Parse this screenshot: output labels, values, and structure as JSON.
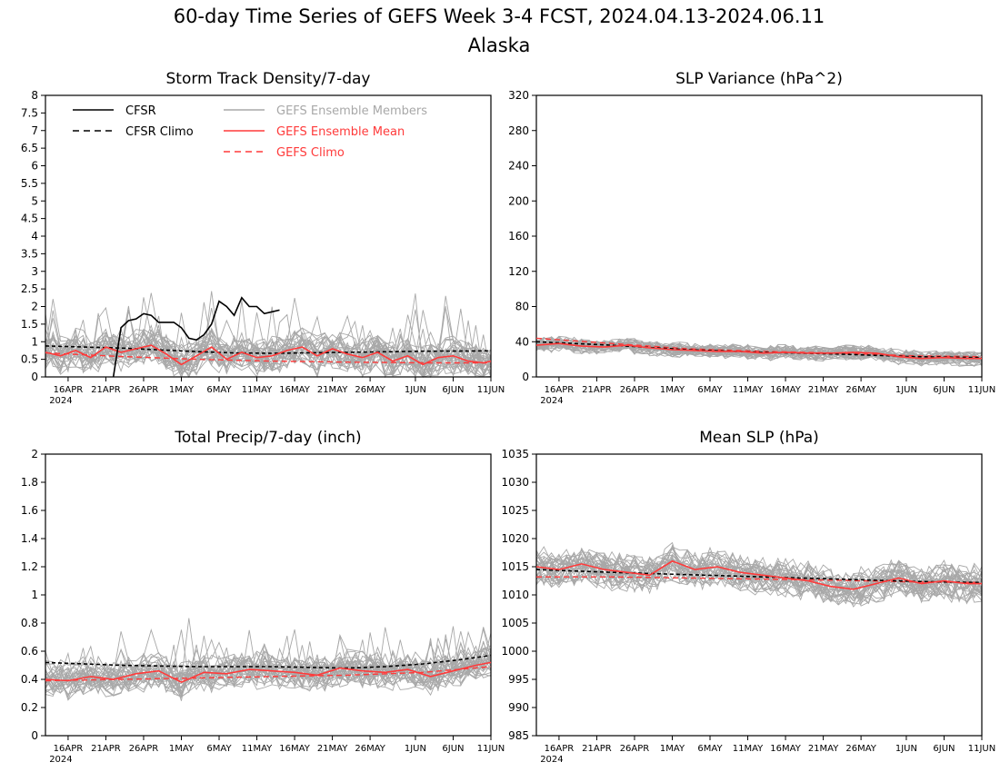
{
  "header": {
    "title_line1": "60-day Time Series of GEFS Week 3-4 FCST, 2024.04.13-2024.06.11",
    "title_line2": "Alaska"
  },
  "colors": {
    "cfsr": "#000000",
    "members": "#a8a8a8",
    "ens_mean": "#ff3a3a",
    "axes": "#000000"
  },
  "x_axis": {
    "ticks": [
      {
        "day": 3,
        "label": "16APR"
      },
      {
        "day": 8,
        "label": "21APR"
      },
      {
        "day": 13,
        "label": "26APR"
      },
      {
        "day": 18,
        "label": "1MAY"
      },
      {
        "day": 23,
        "label": "6MAY"
      },
      {
        "day": 28,
        "label": "11MAY"
      },
      {
        "day": 33,
        "label": "16MAY"
      },
      {
        "day": 38,
        "label": "21MAY"
      },
      {
        "day": 43,
        "label": "26MAY"
      },
      {
        "day": 49,
        "label": "1JUN"
      },
      {
        "day": 54,
        "label": "6JUN"
      },
      {
        "day": 59,
        "label": "11JUN"
      }
    ],
    "year_label": "2024"
  },
  "legend": {
    "cfsr": "CFSR",
    "cfsr_climo": "CFSR Climo",
    "members": "GEFS Ensemble Members",
    "ens_mean": "GEFS Ensemble Mean",
    "gefs_climo": "GEFS Climo"
  },
  "chart_data": [
    {
      "type": "line",
      "title": "Storm Track Density/7-day",
      "x_range": [
        0,
        59
      ],
      "ylim": [
        0,
        8
      ],
      "y_ticks": [
        "0",
        "0.5",
        "1",
        "1.5",
        "2",
        "2.5",
        "3",
        "3.5",
        "4",
        "4.5",
        "5",
        "5.5",
        "6",
        "6.5",
        "7",
        "7.5",
        "8"
      ],
      "member_count": 30,
      "series": [
        {
          "name": "CFSR",
          "x": [
            9,
            10,
            11,
            12,
            13,
            14,
            15,
            16,
            17,
            18,
            19,
            20,
            21,
            22,
            23,
            24,
            25,
            26,
            27,
            28,
            29,
            30,
            31
          ],
          "values": [
            0,
            1.4,
            1.6,
            1.65,
            1.8,
            1.75,
            1.55,
            1.55,
            1.55,
            1.4,
            1.1,
            1.05,
            1.2,
            1.5,
            2.15,
            2.0,
            1.75,
            2.25,
            2.0,
            2.0,
            1.8,
            1.85,
            1.9
          ]
        },
        {
          "name": "CFSR Climo",
          "x": [
            0,
            10,
            20,
            25,
            30,
            40,
            50,
            59
          ],
          "values": [
            0.88,
            0.82,
            0.72,
            0.68,
            0.67,
            0.7,
            0.73,
            0.74
          ]
        },
        {
          "name": "GEFS Ensemble Mean",
          "x": [
            0,
            2,
            4,
            6,
            8,
            10,
            12,
            14,
            16,
            18,
            20,
            22,
            24,
            26,
            28,
            30,
            32,
            34,
            36,
            38,
            40,
            42,
            44,
            46,
            48,
            50,
            52,
            54,
            56,
            58,
            59
          ],
          "values": [
            0.7,
            0.6,
            0.75,
            0.55,
            0.85,
            0.7,
            0.8,
            0.9,
            0.65,
            0.35,
            0.6,
            0.85,
            0.5,
            0.7,
            0.55,
            0.6,
            0.75,
            0.85,
            0.6,
            0.8,
            0.65,
            0.55,
            0.7,
            0.45,
            0.6,
            0.35,
            0.55,
            0.6,
            0.45,
            0.4,
            0.45
          ]
        },
        {
          "name": "GEFS Climo",
          "x": [
            0,
            10,
            20,
            30,
            40,
            50,
            59
          ],
          "values": [
            0.68,
            0.58,
            0.5,
            0.45,
            0.42,
            0.4,
            0.4
          ]
        }
      ]
    },
    {
      "type": "line",
      "title": "SLP Variance (hPa^2)",
      "x_range": [
        0,
        59
      ],
      "ylim": [
        0,
        320
      ],
      "y_ticks": [
        "0",
        "40",
        "80",
        "120",
        "160",
        "200",
        "240",
        "280",
        "320"
      ],
      "member_count": 30,
      "series": [
        {
          "name": "CFSR Climo",
          "x": [
            0,
            10,
            20,
            30,
            40,
            50,
            59
          ],
          "values": [
            40,
            36,
            31,
            28,
            26,
            23,
            22
          ]
        },
        {
          "name": "GEFS Ensemble Mean",
          "x": [
            0,
            3,
            6,
            9,
            12,
            15,
            18,
            21,
            24,
            27,
            30,
            33,
            36,
            39,
            42,
            45,
            48,
            51,
            54,
            57,
            59
          ],
          "values": [
            36,
            38,
            35,
            34,
            36,
            33,
            31,
            30,
            29,
            29,
            27,
            28,
            27,
            27,
            28,
            27,
            23,
            21,
            22,
            21,
            21
          ]
        },
        {
          "name": "GEFS Climo",
          "x": [
            0,
            10,
            20,
            30,
            40,
            50,
            59
          ],
          "values": [
            44,
            38,
            32,
            29,
            27,
            24,
            23
          ]
        }
      ]
    },
    {
      "type": "line",
      "title": "Total Precip/7-day (inch)",
      "x_range": [
        0,
        59
      ],
      "ylim": [
        0,
        2
      ],
      "y_ticks": [
        "0",
        "0.2",
        "0.4",
        "0.6",
        "0.8",
        "1",
        "1.2",
        "1.4",
        "1.6",
        "1.8",
        "2"
      ],
      "member_count": 30,
      "series": [
        {
          "name": "CFSR Climo",
          "x": [
            0,
            10,
            20,
            30,
            40,
            45,
            50,
            55,
            59
          ],
          "values": [
            0.52,
            0.5,
            0.49,
            0.49,
            0.48,
            0.49,
            0.51,
            0.54,
            0.57
          ]
        },
        {
          "name": "GEFS Ensemble Mean",
          "x": [
            0,
            3,
            6,
            9,
            12,
            15,
            18,
            21,
            24,
            27,
            30,
            33,
            36,
            39,
            42,
            45,
            48,
            51,
            54,
            57,
            59
          ],
          "values": [
            0.4,
            0.39,
            0.42,
            0.4,
            0.44,
            0.46,
            0.38,
            0.45,
            0.44,
            0.47,
            0.46,
            0.45,
            0.43,
            0.48,
            0.46,
            0.45,
            0.47,
            0.42,
            0.46,
            0.5,
            0.52
          ]
        },
        {
          "name": "GEFS Climo",
          "x": [
            0,
            10,
            20,
            30,
            40,
            50,
            59
          ],
          "values": [
            0.39,
            0.4,
            0.41,
            0.42,
            0.43,
            0.45,
            0.49
          ]
        }
      ]
    },
    {
      "type": "line",
      "title": "Mean SLP (hPa)",
      "x_range": [
        0,
        59
      ],
      "ylim": [
        985,
        1035
      ],
      "y_ticks": [
        "985",
        "990",
        "995",
        "1000",
        "1005",
        "1010",
        "1015",
        "1020",
        "1025",
        "1030",
        "1035"
      ],
      "member_count": 30,
      "series": [
        {
          "name": "CFSR Climo",
          "x": [
            0,
            10,
            20,
            30,
            40,
            50,
            59
          ],
          "values": [
            1014.5,
            1014.0,
            1013.6,
            1013.2,
            1012.8,
            1012.4,
            1012.2
          ]
        },
        {
          "name": "GEFS Ensemble Mean",
          "x": [
            0,
            3,
            6,
            9,
            12,
            15,
            18,
            21,
            24,
            27,
            30,
            33,
            36,
            39,
            42,
            45,
            48,
            51,
            54,
            57,
            59
          ],
          "values": [
            1015.0,
            1014.5,
            1015.5,
            1014.5,
            1014.0,
            1013.5,
            1016.0,
            1014.5,
            1015.0,
            1014.0,
            1013.5,
            1013.0,
            1012.5,
            1011.5,
            1011.0,
            1012.0,
            1013.0,
            1012.0,
            1012.5,
            1012.0,
            1012.0
          ]
        },
        {
          "name": "GEFS Climo",
          "x": [
            0,
            10,
            20,
            30,
            40,
            50,
            59
          ],
          "values": [
            1013.2,
            1013.2,
            1013.0,
            1012.8,
            1012.6,
            1012.3,
            1012.2
          ]
        }
      ]
    }
  ]
}
